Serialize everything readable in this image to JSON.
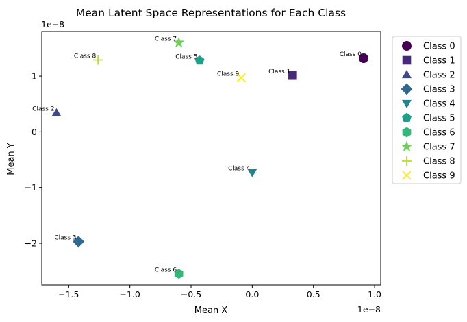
{
  "chart_data": {
    "type": "scatter",
    "title": "Mean Latent Space Representations for Each Class",
    "xlabel": "Mean X",
    "ylabel": "Mean Y",
    "x_offset_label": "1e−8",
    "y_offset_label": "1e−8",
    "xlim": [
      -1.72,
      1.05
    ],
    "ylim": [
      -2.75,
      1.8
    ],
    "x_ticks": [
      {
        "value": -1.5,
        "label": "−1.5"
      },
      {
        "value": -1.0,
        "label": "−1.0"
      },
      {
        "value": -0.5,
        "label": "−0.5"
      },
      {
        "value": 0.0,
        "label": "0.0"
      },
      {
        "value": 0.5,
        "label": "0.5"
      },
      {
        "value": 1.0,
        "label": "1.0"
      }
    ],
    "y_ticks": [
      {
        "value": -2,
        "label": "−2"
      },
      {
        "value": -1,
        "label": "−1"
      },
      {
        "value": 0,
        "label": "0"
      },
      {
        "value": 1,
        "label": "1"
      }
    ],
    "grid": false,
    "legend_position": "outside-right",
    "series": [
      {
        "name": "Class 0",
        "x": 0.91,
        "y": 1.32,
        "marker": "circle",
        "color": "#440154"
      },
      {
        "name": "Class 1",
        "x": 0.33,
        "y": 1.01,
        "marker": "square",
        "color": "#482878"
      },
      {
        "name": "Class 2",
        "x": -1.6,
        "y": 0.34,
        "marker": "triangle-up",
        "color": "#3e4989"
      },
      {
        "name": "Class 3",
        "x": -1.42,
        "y": -1.97,
        "marker": "diamond",
        "color": "#31688e"
      },
      {
        "name": "Class 4",
        "x": 0.0,
        "y": -0.73,
        "marker": "triangle-down",
        "color": "#26828e"
      },
      {
        "name": "Class 5",
        "x": -0.43,
        "y": 1.28,
        "marker": "pentagon",
        "color": "#1f9e89"
      },
      {
        "name": "Class 6",
        "x": -0.6,
        "y": -2.55,
        "marker": "hexagon",
        "color": "#35b779"
      },
      {
        "name": "Class 7",
        "x": -0.6,
        "y": 1.6,
        "marker": "star",
        "color": "#6ece58"
      },
      {
        "name": "Class 8",
        "x": -1.26,
        "y": 1.29,
        "marker": "plus",
        "color": "#b5de2b"
      },
      {
        "name": "Class 9",
        "x": -0.09,
        "y": 0.97,
        "marker": "x",
        "color": "#fde725"
      }
    ]
  }
}
